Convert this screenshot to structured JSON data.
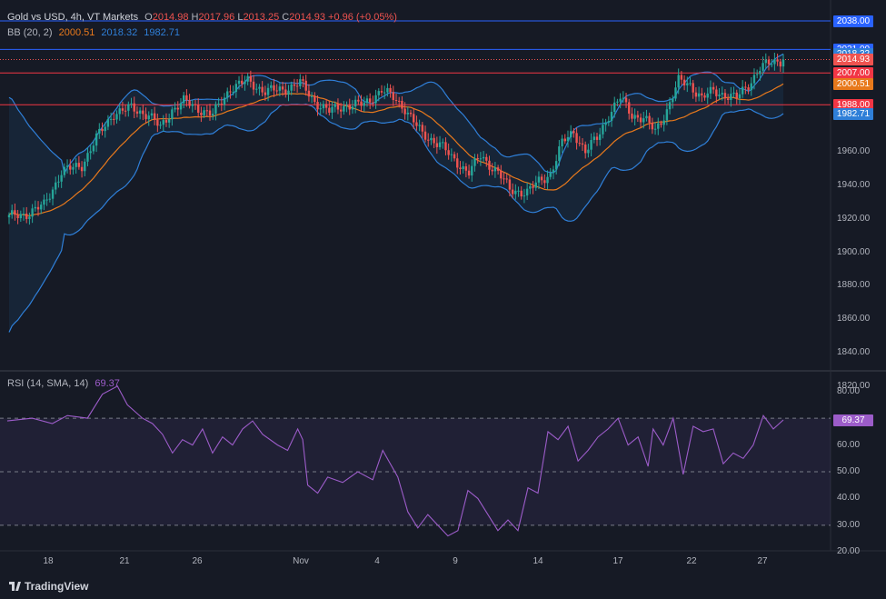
{
  "header": {
    "symbol": "Gold vs USD, 4h, VT Markets",
    "open_label": "O",
    "open": "2014.98",
    "high_label": "H",
    "high": "2017.96",
    "low_label": "L",
    "low": "2013.25",
    "close_label": "C",
    "close": "2014.93",
    "change": "+0.96 (+0.05%)"
  },
  "bb_legend": {
    "name": "BB (20, 2)",
    "basis": "2000.51",
    "upper": "2018.32",
    "lower": "1982.71"
  },
  "rsi_legend": {
    "name": "RSI (14, SMA, 14)",
    "value": "69.37"
  },
  "colors": {
    "background": "#161a25",
    "up": "#26a69a",
    "down": "#ef5350",
    "bb_band": "#2f7fd8",
    "bb_basis": "#e8791c",
    "rsi": "#9c5cc9",
    "hline_blue": "#2962ff",
    "hline_red": "#f23645"
  },
  "price_labels": [
    {
      "text": "2038.00",
      "value": 2038.0,
      "color": "#2962ff"
    },
    {
      "text": "2021.00",
      "value": 2021.0,
      "color": "#2962ff"
    },
    {
      "text": "2018.32",
      "value": 2018.32,
      "color": "#2f7fd8"
    },
    {
      "text": "2014.93",
      "value": 2014.93,
      "color": "#ef5350"
    },
    {
      "text": "2007.00",
      "value": 2007.0,
      "color": "#f23645"
    },
    {
      "text": "2000.51",
      "value": 2000.51,
      "color": "#e8791c"
    },
    {
      "text": "1988.00",
      "value": 1988.0,
      "color": "#f23645"
    },
    {
      "text": "1982.71",
      "value": 1982.71,
      "color": "#2f7fd8"
    }
  ],
  "price_ticks": [
    "1960.00",
    "1940.00",
    "1920.00",
    "1900.00",
    "1880.00",
    "1860.00",
    "1840.00",
    "1820.00"
  ],
  "rsi_ticks": [
    "80.00",
    "60.00",
    "50.00",
    "40.00",
    "30.00",
    "20.00"
  ],
  "rsi_label": "69.37",
  "x_ticks": [
    "18",
    "21",
    "26",
    "Nov",
    "4",
    "9",
    "14",
    "17",
    "22",
    "27"
  ],
  "brand": "TradingView",
  "chart_data": [
    {
      "type": "candlestick",
      "title": "Gold vs USD, 4h, VT Markets",
      "x_labels": [
        "18",
        "21",
        "26",
        "Nov",
        "4",
        "9",
        "14",
        "17",
        "22",
        "27"
      ],
      "ylim": [
        1812,
        2045
      ],
      "horizontal_lines": [
        2038.0,
        2021.0,
        2007.0,
        1988.0
      ],
      "close_waypoints": [
        [
          0,
          1921
        ],
        [
          6,
          1923
        ],
        [
          12,
          1928
        ],
        [
          18,
          1948
        ],
        [
          25,
          1952
        ],
        [
          30,
          1968
        ],
        [
          36,
          1983
        ],
        [
          42,
          1986
        ],
        [
          48,
          1982
        ],
        [
          52,
          1974
        ],
        [
          56,
          1985
        ],
        [
          60,
          1990
        ],
        [
          66,
          1985
        ],
        [
          70,
          1982
        ],
        [
          76,
          1998
        ],
        [
          82,
          2002
        ],
        [
          88,
          1996
        ],
        [
          94,
          1997
        ],
        [
          100,
          2001
        ],
        [
          105,
          1990
        ],
        [
          110,
          1984
        ],
        [
          116,
          1988
        ],
        [
          122,
          1988
        ],
        [
          128,
          1997
        ],
        [
          132,
          1992
        ],
        [
          136,
          1986
        ],
        [
          142,
          1970
        ],
        [
          148,
          1965
        ],
        [
          152,
          1956
        ],
        [
          158,
          1948
        ],
        [
          162,
          1957
        ],
        [
          168,
          1948
        ],
        [
          172,
          1937
        ],
        [
          178,
          1936
        ],
        [
          182,
          1942
        ],
        [
          186,
          1947
        ],
        [
          190,
          1965
        ],
        [
          194,
          1972
        ],
        [
          198,
          1960
        ],
        [
          202,
          1968
        ],
        [
          206,
          1982
        ],
        [
          210,
          1992
        ],
        [
          214,
          1982
        ],
        [
          218,
          1980
        ],
        [
          222,
          1972
        ],
        [
          226,
          1985
        ],
        [
          230,
          2002
        ],
        [
          234,
          2000
        ],
        [
          238,
          1992
        ],
        [
          242,
          1996
        ],
        [
          246,
          1994
        ],
        [
          250,
          1992
        ],
        [
          254,
          2000
        ],
        [
          258,
          2010
        ],
        [
          262,
          2013
        ],
        [
          266,
          2015
        ]
      ],
      "series": [
        {
          "name": "BB (20, 2)",
          "type": "bollinger",
          "period": 20,
          "stddev": 2,
          "basis_last": 2000.51,
          "upper_last": 2018.32,
          "lower_last": 1982.71
        }
      ]
    },
    {
      "type": "line",
      "title": "RSI (14, SMA, 14)",
      "ylim": [
        20,
        85
      ],
      "levels": [
        70,
        50,
        30
      ],
      "series": [
        {
          "name": "RSI (14, SMA, 14)",
          "last": 69.37
        }
      ]
    }
  ]
}
